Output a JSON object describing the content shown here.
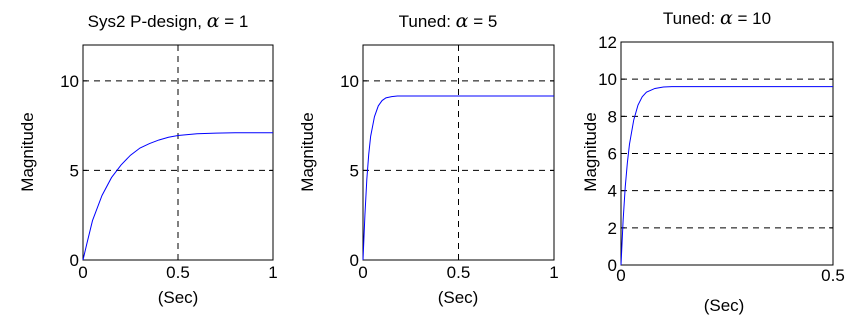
{
  "chart_data": [
    {
      "type": "line",
      "title_text": "Sys2 P-design, ",
      "title_symbol": "α",
      "title_value": " = 1",
      "xlabel": "(Sec)",
      "ylabel": "Magnitude",
      "xlim": [
        0,
        1
      ],
      "ylim": [
        0,
        12
      ],
      "x_ticks": [
        0,
        0.5,
        1
      ],
      "x_tick_labels": [
        "0",
        "0.5",
        "1"
      ],
      "y_ticks": [
        0,
        5,
        10
      ],
      "y_tick_labels": [
        "0",
        "5",
        "10"
      ],
      "grid": true,
      "grid_style": "dashed",
      "series": [
        {
          "color": "#0000ff",
          "x": [
            0,
            0.02,
            0.05,
            0.1,
            0.15,
            0.2,
            0.25,
            0.3,
            0.35,
            0.4,
            0.45,
            0.5,
            0.6,
            0.7,
            0.8,
            1.0
          ],
          "y": [
            0,
            0.9,
            2.2,
            3.6,
            4.6,
            5.3,
            5.85,
            6.25,
            6.5,
            6.7,
            6.85,
            6.95,
            7.05,
            7.08,
            7.1,
            7.1
          ]
        }
      ]
    },
    {
      "type": "line",
      "title_text": "Tuned: ",
      "title_symbol": "α",
      "title_value": " = 5",
      "xlabel": "(Sec)",
      "ylabel": "Magnitude",
      "xlim": [
        0,
        1
      ],
      "ylim": [
        0,
        12
      ],
      "x_ticks": [
        0,
        0.5,
        1
      ],
      "x_tick_labels": [
        "0",
        "0.5",
        "1"
      ],
      "y_ticks": [
        0,
        5,
        10
      ],
      "y_tick_labels": [
        "0",
        "5",
        "10"
      ],
      "grid": true,
      "grid_style": "dashed",
      "series": [
        {
          "color": "#0000ff",
          "x": [
            0,
            0.01,
            0.02,
            0.03,
            0.04,
            0.06,
            0.08,
            0.1,
            0.12,
            0.15,
            0.18,
            0.22,
            0.3,
            1.0
          ],
          "y": [
            0,
            2.5,
            4.5,
            5.9,
            6.9,
            8.0,
            8.6,
            8.9,
            9.05,
            9.12,
            9.15,
            9.15,
            9.15,
            9.15
          ]
        }
      ]
    },
    {
      "type": "line",
      "title_text": "Tuned: ",
      "title_symbol": "α",
      "title_value": " = 10",
      "xlabel": "(Sec)",
      "ylabel": "Magnitude",
      "xlim": [
        0,
        0.5
      ],
      "ylim": [
        0,
        12
      ],
      "x_ticks": [
        0,
        0.5
      ],
      "x_tick_labels": [
        "0",
        "0.5"
      ],
      "y_ticks": [
        0,
        2,
        4,
        6,
        8,
        10,
        12
      ],
      "y_tick_labels": [
        "0",
        "2",
        "4",
        "6",
        "8",
        "10",
        "12"
      ],
      "grid": true,
      "grid_style": "dashed",
      "series": [
        {
          "color": "#0000ff",
          "x": [
            0,
            0.005,
            0.01,
            0.015,
            0.02,
            0.03,
            0.04,
            0.05,
            0.06,
            0.08,
            0.1,
            0.12,
            0.15,
            0.5
          ],
          "y": [
            0,
            2.4,
            4.2,
            5.5,
            6.5,
            7.8,
            8.6,
            9.05,
            9.3,
            9.5,
            9.58,
            9.6,
            9.6,
            9.6
          ]
        }
      ]
    }
  ]
}
